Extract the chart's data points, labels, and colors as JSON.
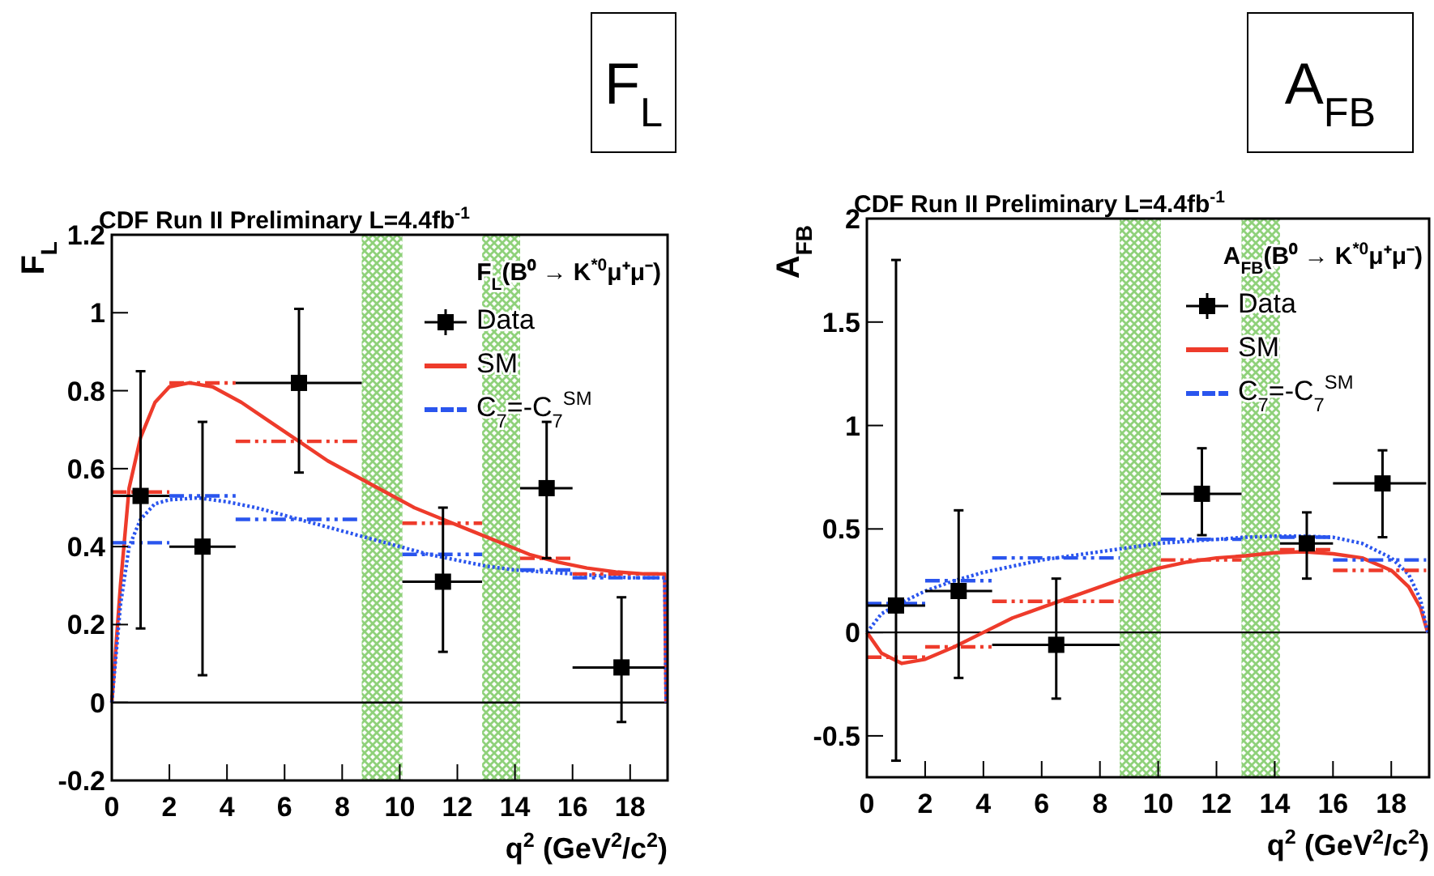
{
  "chart_data": [
    {
      "type": "scatter",
      "title": "CDF Run II Preliminary L=4.4fb$^{-1}$",
      "xlabel": "q$^{2}$ (GeV$^{2}$/c$^{2}$)",
      "ylabel": "F$_{L}$",
      "legend_title": "F$_{L}$(B⁰ → K$^{*0}$μ⁺μ⁻)",
      "legend": "top right",
      "annotations": [
        "F$_{L}$"
      ],
      "xlim": [
        0,
        19.3
      ],
      "ylim": [
        -0.2,
        1.2
      ],
      "xticks": [
        0,
        2,
        4,
        6,
        8,
        10,
        12,
        14,
        16,
        18
      ],
      "yticks": [
        -0.2,
        0,
        0.2,
        0.4,
        0.6,
        0.8,
        1,
        1.2
      ],
      "bands": [
        {
          "axis": "x",
          "from": 8.68,
          "to": 10.09,
          "color": "#8fd17a"
        },
        {
          "axis": "x",
          "from": 12.86,
          "to": 14.18,
          "color": "#8fd17a"
        }
      ],
      "ref_lines": [
        {
          "axis": "y",
          "value": 0,
          "color": "#000000"
        }
      ],
      "series": [
        {
          "name": "Data",
          "marker": "square",
          "color": "#000000",
          "x": [
            1,
            3.15,
            6.5,
            11.5,
            15.1,
            17.7
          ],
          "values": [
            0.53,
            0.4,
            0.82,
            0.31,
            0.55,
            0.09
          ],
          "errors": [
            [
              0.19,
              0.85
            ],
            [
              0.07,
              0.72
            ],
            [
              0.59,
              1.01
            ],
            [
              0.13,
              0.5
            ],
            [
              0.37,
              0.72
            ],
            [
              -0.05,
              0.27
            ]
          ],
          "xerrors": [
            [
              0,
              2
            ],
            [
              2,
              4.3
            ],
            [
              4.3,
              8.68
            ],
            [
              10.09,
              12.86
            ],
            [
              14.18,
              16
            ],
            [
              16,
              19.2
            ]
          ]
        },
        {
          "name": "SM",
          "type": "line",
          "color": "#ee3b2b",
          "line_style": "solid",
          "x": [
            0,
            0.3,
            0.6,
            1,
            1.5,
            2,
            2.7,
            3.5,
            4.5,
            5.5,
            6.5,
            7.5,
            8.5,
            9.5,
            10.5,
            11.5,
            12.5,
            13.5,
            14.5,
            15.5,
            16.5,
            17.5,
            18.5,
            19.2,
            19.25
          ],
          "values": [
            0,
            0.3,
            0.55,
            0.68,
            0.77,
            0.81,
            0.82,
            0.81,
            0.77,
            0.72,
            0.67,
            0.62,
            0.58,
            0.54,
            0.5,
            0.47,
            0.44,
            0.41,
            0.38,
            0.36,
            0.345,
            0.335,
            0.33,
            0.33,
            0
          ]
        },
        {
          "name": "C$_{7}$=-C$_{7}$$^{SM}$",
          "type": "line",
          "color": "#2a55ee",
          "line_style": "dotted",
          "x": [
            0,
            0.3,
            0.6,
            1,
            1.5,
            2,
            3,
            4,
            5,
            6,
            7,
            8,
            9,
            10,
            11,
            12,
            13,
            14,
            15,
            16,
            17,
            18,
            19.2,
            19.25
          ],
          "values": [
            0,
            0.25,
            0.4,
            0.47,
            0.51,
            0.52,
            0.525,
            0.515,
            0.5,
            0.48,
            0.46,
            0.44,
            0.42,
            0.4,
            0.38,
            0.365,
            0.35,
            0.34,
            0.335,
            0.33,
            0.325,
            0.32,
            0.32,
            0
          ]
        },
        {
          "type": "line",
          "color": "#ee3b2b",
          "line_style": "dashed",
          "x": [
            0,
            2,
            null,
            2,
            4.3,
            null,
            4.3,
            8.68,
            null,
            10.09,
            12.86,
            null,
            14.18,
            16,
            null,
            16,
            19.2
          ],
          "values": [
            0.54,
            0.54,
            null,
            0.82,
            0.82,
            null,
            0.67,
            0.67,
            null,
            0.46,
            0.46,
            null,
            0.37,
            0.37,
            null,
            0.33,
            0.33
          ]
        },
        {
          "type": "line",
          "color": "#2a55ee",
          "line_style": "dashed",
          "x": [
            0,
            2,
            null,
            2,
            4.3,
            null,
            4.3,
            8.68,
            null,
            10.09,
            12.86,
            null,
            14.18,
            16,
            null,
            16,
            19.2
          ],
          "values": [
            0.41,
            0.41,
            null,
            0.53,
            0.53,
            null,
            0.47,
            0.47,
            null,
            0.38,
            0.38,
            null,
            0.34,
            0.34,
            null,
            0.32,
            0.32
          ]
        }
      ]
    },
    {
      "type": "scatter",
      "title": "CDF Run II Preliminary L=4.4fb$^{-1}$",
      "xlabel": "q$^{2}$ (GeV$^{2}$/c$^{2}$)",
      "ylabel": "A$_{FB}$",
      "legend_title": "A$_{FB}$(B⁰ → K$^{*0}$μ⁺μ⁻)",
      "legend": "top right",
      "annotations": [
        "A$_{FB}$"
      ],
      "xlim": [
        0,
        19.3
      ],
      "ylim": [
        -0.7,
        2
      ],
      "xticks": [
        0,
        2,
        4,
        6,
        8,
        10,
        12,
        14,
        16,
        18
      ],
      "yticks": [
        -0.5,
        0,
        0.5,
        1,
        1.5,
        2
      ],
      "bands": [
        {
          "axis": "x",
          "from": 8.68,
          "to": 10.09,
          "color": "#8fd17a"
        },
        {
          "axis": "x",
          "from": 12.86,
          "to": 14.18,
          "color": "#8fd17a"
        }
      ],
      "ref_lines": [
        {
          "axis": "y",
          "value": 0,
          "color": "#000000"
        }
      ],
      "series": [
        {
          "name": "Data",
          "marker": "square",
          "color": "#000000",
          "x": [
            1,
            3.15,
            6.5,
            11.5,
            15.1,
            17.7
          ],
          "values": [
            0.13,
            0.2,
            -0.06,
            0.67,
            0.43,
            0.72
          ],
          "errors": [
            [
              -0.62,
              1.8
            ],
            [
              -0.22,
              0.59
            ],
            [
              -0.32,
              0.26
            ],
            [
              0.47,
              0.89
            ],
            [
              0.26,
              0.58
            ],
            [
              0.46,
              0.88
            ]
          ],
          "xerrors": [
            [
              0,
              2
            ],
            [
              2,
              4.3
            ],
            [
              4.3,
              8.68
            ],
            [
              10.09,
              12.86
            ],
            [
              14.18,
              16
            ],
            [
              16,
              19.2
            ]
          ]
        },
        {
          "name": "SM",
          "type": "line",
          "color": "#ee3b2b",
          "line_style": "solid",
          "x": [
            0,
            0.5,
            1.2,
            2,
            3,
            4,
            5,
            6,
            7,
            8,
            9,
            10,
            11,
            12,
            13,
            14,
            15,
            16,
            17,
            18,
            18.6,
            19,
            19.25
          ],
          "values": [
            0,
            -0.1,
            -0.15,
            -0.13,
            -0.07,
            0,
            0.07,
            0.12,
            0.17,
            0.22,
            0.27,
            0.31,
            0.34,
            0.36,
            0.37,
            0.385,
            0.39,
            0.38,
            0.36,
            0.3,
            0.22,
            0.12,
            0
          ]
        },
        {
          "name": "C$_{7}$=-C$_{7}$$^{SM}$",
          "type": "line",
          "color": "#2a55ee",
          "line_style": "dotted",
          "x": [
            0,
            0.5,
            1,
            2,
            3,
            4,
            5,
            6,
            7,
            8,
            9,
            10,
            11,
            12,
            13,
            14,
            15,
            16,
            17,
            18,
            18.6,
            19,
            19.25
          ],
          "values": [
            0,
            0.09,
            0.13,
            0.2,
            0.25,
            0.29,
            0.32,
            0.35,
            0.37,
            0.39,
            0.41,
            0.43,
            0.44,
            0.45,
            0.46,
            0.465,
            0.465,
            0.46,
            0.43,
            0.36,
            0.28,
            0.16,
            0
          ]
        },
        {
          "type": "line",
          "color": "#ee3b2b",
          "line_style": "dashed",
          "x": [
            0,
            2,
            null,
            2,
            4.3,
            null,
            4.3,
            8.68,
            null,
            10.09,
            12.86,
            null,
            14.18,
            16,
            null,
            16,
            19.2
          ],
          "values": [
            -0.12,
            -0.12,
            null,
            -0.07,
            -0.07,
            null,
            0.15,
            0.15,
            null,
            0.35,
            0.35,
            null,
            0.4,
            0.4,
            null,
            0.3,
            0.3
          ]
        },
        {
          "type": "line",
          "color": "#2a55ee",
          "line_style": "dashed",
          "x": [
            0,
            2,
            null,
            2,
            4.3,
            null,
            4.3,
            8.68,
            null,
            10.09,
            12.86,
            null,
            14.18,
            16,
            null,
            16,
            19.2
          ],
          "values": [
            0.14,
            0.14,
            null,
            0.25,
            0.25,
            null,
            0.36,
            0.36,
            null,
            0.45,
            0.45,
            null,
            0.46,
            0.46,
            null,
            0.35,
            0.35
          ]
        }
      ]
    }
  ]
}
